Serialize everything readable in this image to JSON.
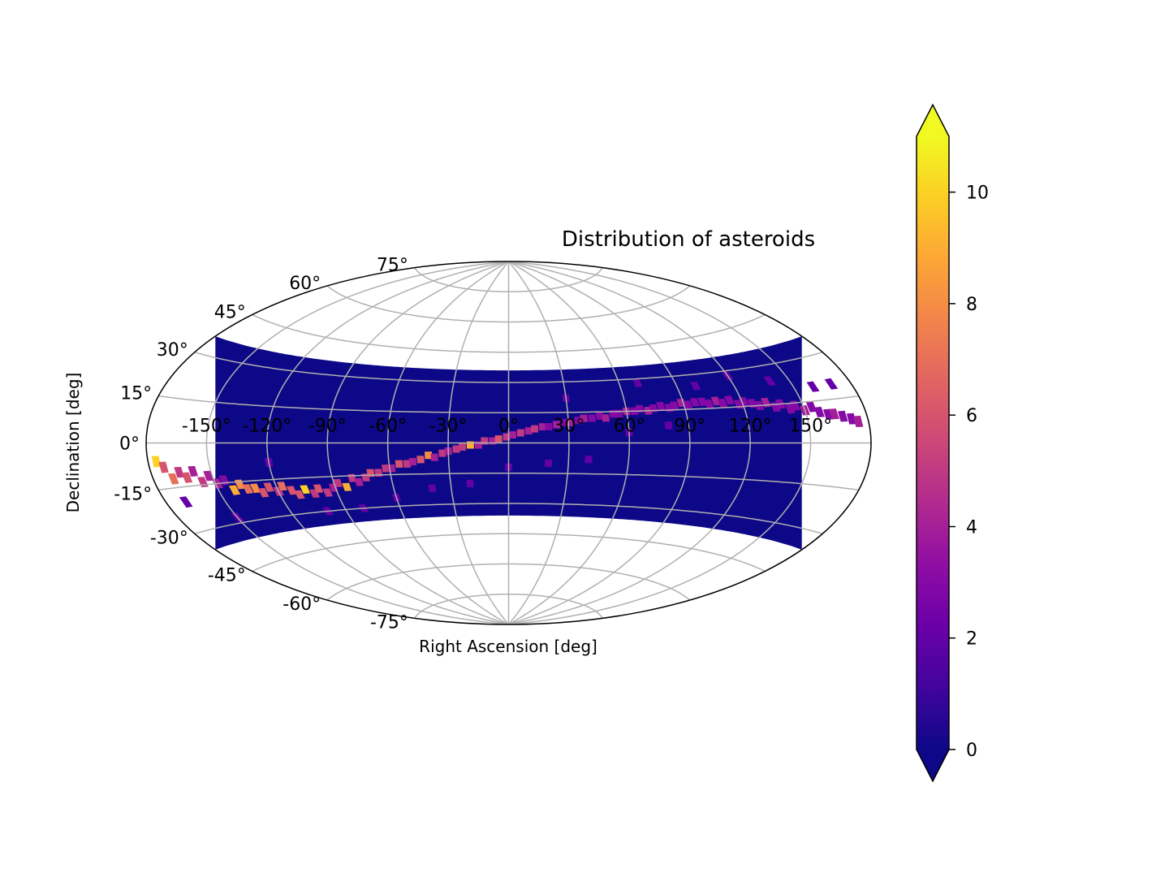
{
  "chart_data": {
    "type": "heatmap",
    "projection": "aitoff",
    "title": "Distribution of asteroids",
    "xlabel": "Right Ascension [deg]",
    "ylabel": "Declination [deg]",
    "xlim": [
      -180,
      180
    ],
    "ylim": [
      -90,
      90
    ],
    "data_dec_range": [
      -36,
      36
    ],
    "grid": true,
    "x_ticks": [
      -150,
      -120,
      -90,
      -60,
      -30,
      0,
      30,
      60,
      90,
      120,
      150
    ],
    "x_tick_labels": [
      "-150°",
      "-120°",
      "-90°",
      "-60°",
      "-30°",
      "0°",
      "30°",
      "60°",
      "90°",
      "120°",
      "150°"
    ],
    "y_ticks": [
      -75,
      -60,
      -45,
      -30,
      -15,
      0,
      15,
      30,
      45,
      60,
      75
    ],
    "y_tick_labels": [
      "-75°",
      "-60°",
      "-45°",
      "-30°",
      "-15°",
      "0°",
      "15°",
      "30°",
      "45°",
      "60°",
      "75°"
    ],
    "colormap": "plasma",
    "colorbar": {
      "range": [
        0,
        11
      ],
      "ticks": [
        0,
        2,
        4,
        6,
        8,
        10
      ],
      "tick_labels": [
        "0",
        "2",
        "4",
        "6",
        "8",
        "10"
      ],
      "extend": "both"
    },
    "background_count": 0,
    "band_cells": [
      [
        -176,
        -6,
        10
      ],
      [
        -173,
        -8,
        6
      ],
      [
        -170,
        -12,
        7
      ],
      [
        -166,
        -10,
        5
      ],
      [
        -163,
        -12,
        6
      ],
      [
        -159,
        -10,
        4
      ],
      [
        -156,
        -14,
        5
      ],
      [
        -152,
        -12,
        4
      ],
      [
        -149,
        -15,
        4
      ],
      [
        -145,
        -14,
        3
      ],
      [
        -142,
        -18,
        9
      ],
      [
        -138,
        -16,
        8
      ],
      [
        -135,
        -18,
        7
      ],
      [
        -131,
        -18,
        8
      ],
      [
        -128,
        -20,
        6
      ],
      [
        -124,
        -18,
        6
      ],
      [
        -120,
        -20,
        5
      ],
      [
        -117,
        -18,
        7
      ],
      [
        -113,
        -20,
        6
      ],
      [
        -110,
        -22,
        6
      ],
      [
        -106,
        -20,
        10
      ],
      [
        -102,
        -22,
        5
      ],
      [
        -99,
        -20,
        6
      ],
      [
        -95,
        -22,
        5
      ],
      [
        -91,
        -20,
        4
      ],
      [
        -88,
        -18,
        5
      ],
      [
        -84,
        -20,
        9
      ],
      [
        -80,
        -16,
        5
      ],
      [
        -77,
        -18,
        4
      ],
      [
        -73,
        -16,
        5
      ],
      [
        -70,
        -14,
        6
      ],
      [
        -66,
        -14,
        5
      ],
      [
        -62,
        -12,
        5
      ],
      [
        -59,
        -12,
        4
      ],
      [
        -55,
        -10,
        6
      ],
      [
        -51,
        -10,
        5
      ],
      [
        -48,
        -9,
        4
      ],
      [
        -44,
        -8,
        6
      ],
      [
        -40,
        -6,
        8
      ],
      [
        -37,
        -7,
        4
      ],
      [
        -33,
        -5,
        5
      ],
      [
        -30,
        -4,
        4
      ],
      [
        -26,
        -3,
        5
      ],
      [
        -23,
        -2,
        5
      ],
      [
        -19,
        -1,
        9
      ],
      [
        -15,
        -1,
        4
      ],
      [
        -12,
        1,
        5
      ],
      [
        -8,
        1,
        4
      ],
      [
        -5,
        2,
        6
      ],
      [
        -1,
        3,
        5
      ],
      [
        2,
        4,
        4
      ],
      [
        6,
        5,
        5
      ],
      [
        10,
        6,
        4
      ],
      [
        13,
        7,
        5
      ],
      [
        17,
        8,
        4
      ],
      [
        20,
        8,
        3
      ],
      [
        24,
        9,
        4
      ],
      [
        28,
        10,
        3
      ],
      [
        31,
        10,
        4
      ],
      [
        35,
        11,
        3
      ],
      [
        38,
        12,
        4
      ],
      [
        42,
        12,
        3
      ],
      [
        46,
        13,
        3
      ],
      [
        49,
        12,
        4
      ],
      [
        53,
        14,
        3
      ],
      [
        56,
        14,
        3
      ],
      [
        60,
        15,
        4
      ],
      [
        64,
        15,
        3
      ],
      [
        67,
        16,
        3
      ],
      [
        71,
        15,
        4
      ],
      [
        74,
        16,
        3
      ],
      [
        78,
        17,
        3
      ],
      [
        82,
        16,
        3
      ],
      [
        85,
        17,
        3
      ],
      [
        89,
        18,
        4
      ],
      [
        92,
        17,
        3
      ],
      [
        96,
        18,
        3
      ],
      [
        100,
        18,
        3
      ],
      [
        103,
        17,
        3
      ],
      [
        107,
        18,
        4
      ],
      [
        110,
        17,
        3
      ],
      [
        114,
        18,
        3
      ],
      [
        118,
        16,
        3
      ],
      [
        121,
        17,
        3
      ],
      [
        125,
        16,
        3
      ],
      [
        128,
        15,
        3
      ],
      [
        132,
        16,
        4
      ],
      [
        136,
        14,
        3
      ],
      [
        139,
        15,
        3
      ],
      [
        143,
        13,
        3
      ],
      [
        146,
        14,
        3
      ],
      [
        150,
        12,
        4
      ],
      [
        154,
        13,
        3
      ],
      [
        157,
        11,
        3
      ],
      [
        161,
        10,
        3
      ],
      [
        164,
        10,
        4
      ],
      [
        168,
        9,
        3
      ],
      [
        172,
        8,
        3
      ],
      [
        175,
        7,
        4
      ],
      [
        -150,
        -28,
        2
      ],
      [
        -100,
        -30,
        2
      ],
      [
        -60,
        -26,
        2
      ],
      [
        -20,
        -20,
        2
      ],
      [
        -40,
        -22,
        2
      ],
      [
        20,
        -10,
        2
      ],
      [
        40,
        -8,
        2
      ],
      [
        60,
        5,
        2
      ],
      [
        80,
        8,
        2
      ],
      [
        100,
        25,
        2
      ],
      [
        120,
        28,
        2
      ],
      [
        140,
        24,
        2
      ],
      [
        160,
        20,
        2
      ],
      [
        -120,
        -8,
        2
      ],
      [
        -80,
        -30,
        2
      ],
      [
        0,
        -12,
        2
      ],
      [
        30,
        22,
        2
      ],
      [
        70,
        28,
        2
      ],
      [
        -170,
        -20,
        2
      ],
      [
        170,
        20,
        2
      ]
    ]
  }
}
